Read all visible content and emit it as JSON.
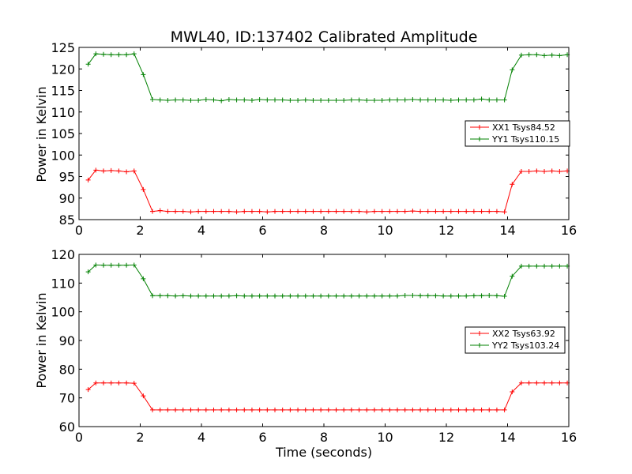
{
  "chart_data": [
    {
      "type": "line",
      "title": "MWL40, ID:137402 Calibrated Amplitude",
      "xlabel": "",
      "ylabel": "Power in Kelvin",
      "xlim": [
        0,
        16
      ],
      "ylim": [
        85,
        125
      ],
      "xticks": [
        "0",
        "2",
        "4",
        "6",
        "8",
        "10",
        "12",
        "14",
        "16"
      ],
      "yticks": [
        "85",
        "90",
        "95",
        "100",
        "105",
        "110",
        "115",
        "120",
        "125"
      ],
      "grid": false,
      "legend_position": "right",
      "x": [
        0.3,
        0.55,
        0.8,
        1.05,
        1.3,
        1.55,
        1.8,
        2.1,
        2.4,
        2.65,
        2.9,
        3.15,
        3.4,
        3.65,
        3.9,
        4.15,
        4.4,
        4.65,
        4.9,
        5.15,
        5.4,
        5.65,
        5.9,
        6.15,
        6.4,
        6.65,
        6.9,
        7.15,
        7.4,
        7.65,
        7.9,
        8.15,
        8.4,
        8.65,
        8.9,
        9.15,
        9.4,
        9.65,
        9.9,
        10.15,
        10.4,
        10.65,
        10.9,
        11.15,
        11.4,
        11.65,
        11.9,
        12.15,
        12.4,
        12.65,
        12.9,
        13.15,
        13.4,
        13.65,
        13.9,
        14.15,
        14.45,
        14.7,
        14.95,
        15.2,
        15.45,
        15.7,
        15.95
      ],
      "series": [
        {
          "name": "XX1 Tsys84.52",
          "color": "#ff0000",
          "values": [
            94.2,
            96.5,
            96.3,
            96.4,
            96.3,
            96.1,
            96.3,
            92.0,
            86.9,
            87.1,
            86.9,
            86.9,
            86.9,
            86.8,
            86.9,
            86.9,
            86.9,
            86.9,
            86.9,
            86.8,
            86.9,
            86.9,
            86.9,
            86.8,
            86.9,
            86.9,
            86.9,
            86.9,
            86.9,
            86.9,
            86.9,
            86.9,
            86.9,
            86.9,
            86.9,
            86.9,
            86.8,
            86.9,
            86.9,
            86.9,
            86.9,
            86.9,
            87.0,
            86.9,
            86.9,
            86.9,
            86.9,
            86.9,
            86.9,
            86.9,
            86.9,
            86.9,
            86.9,
            86.9,
            86.8,
            93.2,
            96.2,
            96.2,
            96.3,
            96.2,
            96.3,
            96.2,
            96.3
          ]
        },
        {
          "name": "YY1 Tsys110.15",
          "color": "#008000",
          "values": [
            121.1,
            123.5,
            123.4,
            123.3,
            123.3,
            123.3,
            123.5,
            118.7,
            112.9,
            112.8,
            112.7,
            112.8,
            112.8,
            112.7,
            112.7,
            112.9,
            112.8,
            112.6,
            112.9,
            112.8,
            112.8,
            112.7,
            112.9,
            112.8,
            112.8,
            112.8,
            112.7,
            112.7,
            112.8,
            112.7,
            112.7,
            112.7,
            112.7,
            112.7,
            112.8,
            112.8,
            112.7,
            112.7,
            112.7,
            112.8,
            112.8,
            112.8,
            112.9,
            112.8,
            112.8,
            112.8,
            112.8,
            112.7,
            112.8,
            112.8,
            112.8,
            113.0,
            112.8,
            112.8,
            112.8,
            119.8,
            123.2,
            123.3,
            123.3,
            123.1,
            123.2,
            123.1,
            123.3
          ]
        }
      ]
    },
    {
      "type": "line",
      "title": "",
      "xlabel": "Time (seconds)",
      "ylabel": "Power in Kelvin",
      "xlim": [
        0,
        16
      ],
      "ylim": [
        60,
        120
      ],
      "xticks": [
        "0",
        "2",
        "4",
        "6",
        "8",
        "10",
        "12",
        "14",
        "16"
      ],
      "yticks": [
        "60",
        "70",
        "80",
        "90",
        "100",
        "110",
        "120"
      ],
      "grid": false,
      "legend_position": "right",
      "x": [
        0.3,
        0.55,
        0.8,
        1.05,
        1.3,
        1.55,
        1.8,
        2.1,
        2.4,
        2.65,
        2.9,
        3.15,
        3.4,
        3.65,
        3.9,
        4.15,
        4.4,
        4.65,
        4.9,
        5.15,
        5.4,
        5.65,
        5.9,
        6.15,
        6.4,
        6.65,
        6.9,
        7.15,
        7.4,
        7.65,
        7.9,
        8.15,
        8.4,
        8.65,
        8.9,
        9.15,
        9.4,
        9.65,
        9.9,
        10.15,
        10.4,
        10.65,
        10.9,
        11.15,
        11.4,
        11.65,
        11.9,
        12.15,
        12.4,
        12.65,
        12.9,
        13.15,
        13.4,
        13.65,
        13.9,
        14.15,
        14.45,
        14.7,
        14.95,
        15.2,
        15.45,
        15.7,
        15.95
      ],
      "series": [
        {
          "name": "XX2 Tsys63.92",
          "color": "#ff0000",
          "values": [
            72.9,
            75.2,
            75.2,
            75.2,
            75.2,
            75.2,
            75.1,
            70.7,
            65.8,
            65.8,
            65.8,
            65.8,
            65.8,
            65.8,
            65.8,
            65.8,
            65.8,
            65.8,
            65.8,
            65.8,
            65.8,
            65.8,
            65.8,
            65.8,
            65.8,
            65.8,
            65.8,
            65.8,
            65.8,
            65.8,
            65.8,
            65.8,
            65.8,
            65.8,
            65.8,
            65.8,
            65.8,
            65.8,
            65.8,
            65.8,
            65.8,
            65.8,
            65.8,
            65.8,
            65.8,
            65.8,
            65.8,
            65.8,
            65.8,
            65.8,
            65.8,
            65.8,
            65.8,
            65.8,
            65.8,
            72.1,
            75.2,
            75.2,
            75.2,
            75.2,
            75.2,
            75.2,
            75.2
          ]
        },
        {
          "name": "YY2 Tsys103.24",
          "color": "#008000",
          "values": [
            113.9,
            116.3,
            116.2,
            116.2,
            116.2,
            116.2,
            116.3,
            111.5,
            105.6,
            105.6,
            105.6,
            105.5,
            105.6,
            105.5,
            105.5,
            105.5,
            105.5,
            105.5,
            105.5,
            105.6,
            105.5,
            105.5,
            105.5,
            105.5,
            105.5,
            105.5,
            105.5,
            105.5,
            105.5,
            105.5,
            105.5,
            105.5,
            105.5,
            105.5,
            105.5,
            105.5,
            105.5,
            105.5,
            105.5,
            105.5,
            105.5,
            105.7,
            105.7,
            105.6,
            105.6,
            105.6,
            105.5,
            105.5,
            105.5,
            105.5,
            105.6,
            105.6,
            105.7,
            105.6,
            105.4,
            112.4,
            115.9,
            115.9,
            115.9,
            115.9,
            115.9,
            115.9,
            115.9
          ]
        }
      ]
    }
  ]
}
